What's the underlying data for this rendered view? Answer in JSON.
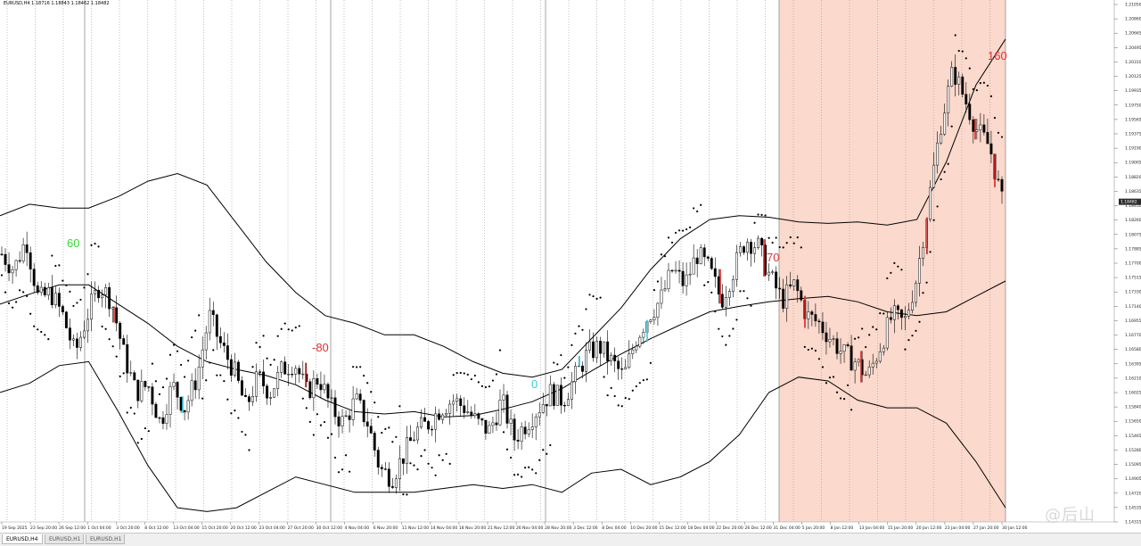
{
  "window": {
    "title": "EURUSD,H4  1.18716 1.18843 1.18462 1.18482"
  },
  "tabs": [
    {
      "label": "EURUSD,H4",
      "active": true
    },
    {
      "label": "EURUSD,H1",
      "active": false
    },
    {
      "label": "EURUSD,H1",
      "active": false
    }
  ],
  "watermark": "@后山",
  "annotations": [
    {
      "text": "60",
      "color": "#33dd33"
    },
    {
      "text": "-80",
      "color": "#dd3333"
    },
    {
      "text": "0",
      "color": "#33ccdd"
    },
    {
      "text": "70",
      "color": "#dd3333"
    },
    {
      "text": "160",
      "color": "#dd3333"
    }
  ],
  "colors": {
    "background": "#ffffff",
    "highlight_zone": "#fbd9cc",
    "candle": "#000000",
    "bands": "#000000",
    "psar": "#000000",
    "red_marker": "#dd2222",
    "cyan_marker": "#33ccdd",
    "green_marker": "#33dd33"
  },
  "chart_data": {
    "type": "line",
    "symbol": "EURUSD,H4",
    "ylim": [
      1.14315,
      1.2105
    ],
    "current_price": "1.18482",
    "y_ticks": [
      "1.21050",
      "1.20860",
      "1.20665",
      "1.20495",
      "1.20310",
      "1.20125",
      "1.19935",
      "1.19750",
      "1.19565",
      "1.19375",
      "1.19190",
      "1.19005",
      "1.18820",
      "1.18635",
      "1.18450",
      "1.18260",
      "1.18075",
      "1.17885",
      "1.17700",
      "1.17515",
      "1.17330",
      "1.17140",
      "1.16955",
      "1.16770",
      "1.16580",
      "1.16395",
      "1.16210",
      "1.16025",
      "1.15840",
      "1.15650",
      "1.15465",
      "1.15280",
      "1.15095",
      "1.14905",
      "1.14720",
      "1.14535",
      "1.14315"
    ],
    "x_ticks": [
      "19 Sep 2025",
      "23 Sep 20:00",
      "26 Sep 12:00",
      "1 Oct 04:00",
      "3 Oct 20:00",
      "8 Oct 12:00",
      "13 Oct 04:00",
      "15 Oct 20:00",
      "20 Oct 12:00",
      "23 Oct 04:00",
      "27 Oct 20:00",
      "30 Oct 12:00",
      "4 Nov 04:00",
      "6 Nov 20:00",
      "11 Nov 12:00",
      "14 Nov 04:00",
      "18 Nov 20:00",
      "21 Nov 12:00",
      "26 Nov 04:00",
      "28 Nov 20:00",
      "3 Dec 12:00",
      "8 Dec 04:00",
      "10 Dec 20:00",
      "15 Dec 12:00",
      "18 Dec 04:00",
      "22 Dec 20:00",
      "26 Dec 12:00",
      "31 Dec 04:00",
      "5 Jan 20:00",
      "8 Jan 12:00",
      "13 Jan 04:00",
      "15 Jan 20:00",
      "20 Jan 12:00",
      "23 Jan 04:00",
      "27 Jan 20:00",
      "30 Jan 12:00"
    ],
    "series": [
      {
        "name": "",
        "kind": "close",
        "values": [
          1.178,
          1.176,
          1.18,
          1.172,
          1.173,
          1.17,
          1.165,
          1.17,
          1.174,
          1.172,
          1.165,
          1.16,
          1.161,
          1.156,
          1.161,
          1.158,
          1.162,
          1.17,
          1.166,
          1.163,
          1.158,
          1.162,
          1.16,
          1.163,
          1.164,
          1.16,
          1.162,
          1.158,
          1.156,
          1.159,
          1.156,
          1.15,
          1.149,
          1.152,
          1.155,
          1.156,
          1.158,
          1.159,
          1.158,
          1.156,
          1.155,
          1.159,
          1.154,
          1.156,
          1.158,
          1.16,
          1.159,
          1.162,
          1.165,
          1.166,
          1.164,
          1.162,
          1.167,
          1.17,
          1.172,
          1.176,
          1.174,
          1.178,
          1.176,
          1.172,
          1.176,
          1.18,
          1.179,
          1.175,
          1.172,
          1.174,
          1.17,
          1.169,
          1.167,
          1.165,
          1.164,
          1.162,
          1.166,
          1.17,
          1.169,
          1.175,
          1.185,
          1.195,
          1.202,
          1.198,
          1.194,
          1.192,
          1.1848
        ]
      },
      {
        "name": "",
        "kind": "band_mid",
        "values": [
          1.1715,
          1.1728,
          1.174,
          1.174,
          1.1715,
          1.169,
          1.166,
          1.164,
          1.163,
          1.1622,
          1.161,
          1.159,
          1.1575,
          1.1572,
          1.1575,
          1.1568,
          1.157,
          1.1578,
          1.1588,
          1.1605,
          1.1628,
          1.165,
          1.167,
          1.1688,
          1.1705,
          1.1712,
          1.1718,
          1.1722,
          1.1725,
          1.1718,
          1.1705,
          1.17,
          1.1705,
          1.1725,
          1.1745
        ]
      },
      {
        "name": "",
        "kind": "band_upper",
        "values": [
          1.183,
          1.1845,
          1.184,
          1.184,
          1.1855,
          1.1875,
          1.1885,
          1.187,
          1.182,
          1.177,
          1.173,
          1.17,
          1.169,
          1.1675,
          1.1675,
          1.166,
          1.164,
          1.1625,
          1.162,
          1.163,
          1.167,
          1.171,
          1.176,
          1.18,
          1.1825,
          1.183,
          1.1828,
          1.1822,
          1.182,
          1.1822,
          1.1818,
          1.1825,
          1.19,
          1.2,
          1.206
        ]
      },
      {
        "name": "",
        "kind": "band_lower",
        "values": [
          1.16,
          1.1612,
          1.1635,
          1.164,
          1.1575,
          1.1505,
          1.145,
          1.1445,
          1.145,
          1.147,
          1.149,
          1.148,
          1.147,
          1.147,
          1.147,
          1.1475,
          1.148,
          1.1475,
          1.148,
          1.147,
          1.1495,
          1.15,
          1.148,
          1.149,
          1.151,
          1.1545,
          1.16,
          1.162,
          1.1615,
          1.159,
          1.158,
          1.158,
          1.156,
          1.151,
          1.145
        ]
      }
    ]
  }
}
